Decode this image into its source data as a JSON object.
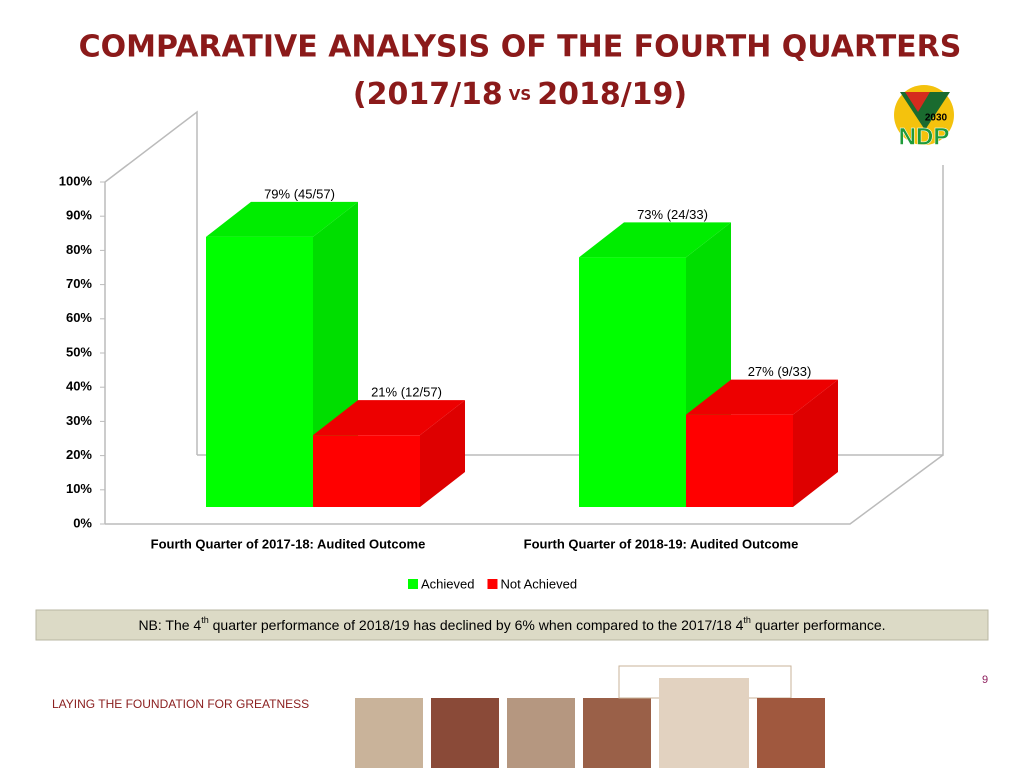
{
  "header": {
    "title_line1": "COMPARATIVE ANALYSIS OF THE FOURTH QUARTERS",
    "title_line2": [
      "(2017/18",
      "VS",
      "2018/19)"
    ],
    "logo": [
      "2030",
      "NDP"
    ]
  },
  "chart_data": {
    "type": "bar3d",
    "categories": [
      "Fourth Quarter of 2017-18: Audited Outcome",
      "Fourth Quarter of 2018-19: Audited Outcome"
    ],
    "series": [
      {
        "name": "Achieved",
        "color": "#00ff00",
        "values": [
          79,
          73
        ],
        "value_labels": [
          "79% (45/57)",
          "73% (24/33)"
        ]
      },
      {
        "name": "Not Achieved",
        "color": "#ff0000",
        "values": [
          21,
          27
        ],
        "value_labels": [
          "21% (12/57)",
          "27% (9/33)"
        ]
      }
    ],
    "ylim": [
      0,
      100
    ],
    "yticks": [
      {
        "value": 0,
        "label": "0%"
      },
      {
        "value": 10,
        "label": "10%"
      },
      {
        "value": 20,
        "label": "20%"
      },
      {
        "value": 30,
        "label": "30%"
      },
      {
        "value": 40,
        "label": "40%"
      },
      {
        "value": 50,
        "label": "50%"
      },
      {
        "value": 60,
        "label": "60%"
      },
      {
        "value": 70,
        "label": "70%"
      },
      {
        "value": 80,
        "label": "80%"
      },
      {
        "value": 90,
        "label": "90%"
      },
      {
        "value": 100,
        "label": "100%"
      }
    ],
    "legend": "bottom"
  },
  "note": [
    "NB: The 4",
    "th",
    " quarter performance of 2018/19 has declined by 6%  when compared to the 2017/18  4",
    "th",
    " quarter performance."
  ],
  "footer": {
    "tagline": "LAYING THE FOUNDATION FOR GREATNESS",
    "page_number": "9"
  }
}
